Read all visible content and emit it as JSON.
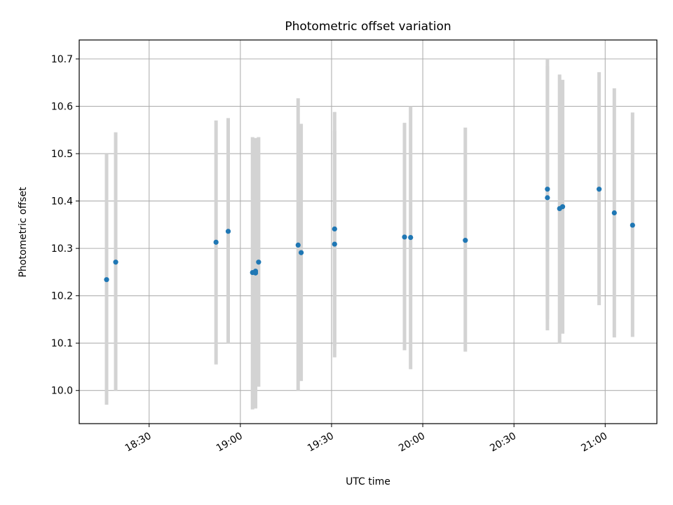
{
  "chart_data": {
    "type": "scatter",
    "title": "Photometric offset variation",
    "xlabel": "UTC time",
    "ylabel": "Photometric offset",
    "x_axis": {
      "range": [
        "18:07",
        "21:17"
      ],
      "ticks": [
        "18:30",
        "19:00",
        "19:30",
        "20:00",
        "20:30",
        "21:00"
      ]
    },
    "y_axis": {
      "range": [
        9.93,
        10.74
      ],
      "ticks": [
        "10.0",
        "10.1",
        "10.2",
        "10.3",
        "10.4",
        "10.5",
        "10.6",
        "10.7"
      ]
    },
    "grid": true,
    "colors": {
      "point": "#1f77b4",
      "errorbar": "#d3d3d3",
      "grid": "#b0b0b0"
    },
    "points": [
      {
        "x": "18:16",
        "y": 10.234,
        "ylow": 9.97,
        "yhigh": 10.5
      },
      {
        "x": "18:19",
        "y": 10.271,
        "ylow": 10.0,
        "yhigh": 10.545
      },
      {
        "x": "18:52",
        "y": 10.313,
        "ylow": 10.055,
        "yhigh": 10.57
      },
      {
        "x": "18:56",
        "y": 10.336,
        "ylow": 10.1,
        "yhigh": 10.575
      },
      {
        "x": "19:04",
        "y": 10.249,
        "ylow": 9.96,
        "yhigh": 10.535
      },
      {
        "x": "19:05",
        "y": 10.252,
        "ylow": 9.963,
        "yhigh": 10.53
      },
      {
        "x": "19:05",
        "y": 10.248,
        "ylow": 9.962,
        "yhigh": 10.533
      },
      {
        "x": "19:06",
        "y": 10.271,
        "ylow": 10.008,
        "yhigh": 10.535
      },
      {
        "x": "19:19",
        "y": 10.307,
        "ylow": 10.0,
        "yhigh": 10.617
      },
      {
        "x": "19:20",
        "y": 10.291,
        "ylow": 10.02,
        "yhigh": 10.563
      },
      {
        "x": "19:31",
        "y": 10.309,
        "ylow": 10.07,
        "yhigh": 10.548
      },
      {
        "x": "19:31",
        "y": 10.341,
        "ylow": 10.095,
        "yhigh": 10.588
      },
      {
        "x": "19:54",
        "y": 10.324,
        "ylow": 10.085,
        "yhigh": 10.565
      },
      {
        "x": "19:56",
        "y": 10.323,
        "ylow": 10.045,
        "yhigh": 10.6
      },
      {
        "x": "20:14",
        "y": 10.317,
        "ylow": 10.082,
        "yhigh": 10.555
      },
      {
        "x": "20:41",
        "y": 10.425,
        "ylow": 10.15,
        "yhigh": 10.7
      },
      {
        "x": "20:41",
        "y": 10.407,
        "ylow": 10.127,
        "yhigh": 10.685
      },
      {
        "x": "20:45",
        "y": 10.384,
        "ylow": 10.1,
        "yhigh": 10.667
      },
      {
        "x": "20:46",
        "y": 10.388,
        "ylow": 10.12,
        "yhigh": 10.656
      },
      {
        "x": "20:58",
        "y": 10.425,
        "ylow": 10.18,
        "yhigh": 10.672
      },
      {
        "x": "21:03",
        "y": 10.375,
        "ylow": 10.112,
        "yhigh": 10.638
      },
      {
        "x": "21:09",
        "y": 10.349,
        "ylow": 10.113,
        "yhigh": 10.587
      }
    ]
  }
}
